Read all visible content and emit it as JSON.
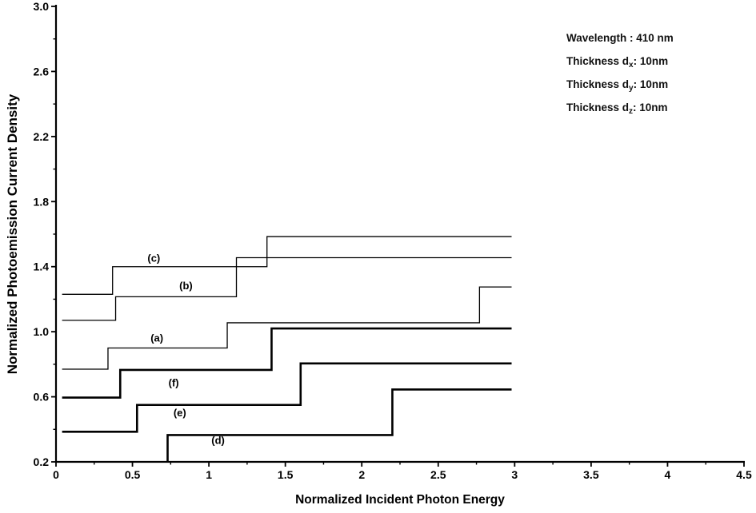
{
  "figure": {
    "background": "#ffffff",
    "axis_color": "#000000",
    "curve_color": "#000000"
  },
  "chart_data": {
    "type": "line",
    "subtype": "step",
    "title": "",
    "xlabel": "Normalized Incident Photon Energy",
    "ylabel": "Normalized Photoemission Current Density",
    "xlim": [
      0,
      4.5
    ],
    "ylim": [
      0.2,
      3.0
    ],
    "xtick_values": [
      0,
      0.5,
      1,
      1.5,
      2,
      2.5,
      3,
      3.5,
      4,
      4.5
    ],
    "xtick_labels": [
      "0",
      "0.5",
      "1",
      "1.5",
      "2",
      "2.5",
      "3",
      "3.5",
      "4",
      "4.5"
    ],
    "ytick_values": [
      0.2,
      0.6,
      1.0,
      1.4,
      1.8,
      2.2,
      2.6,
      3.0
    ],
    "ytick_labels": [
      "0.2",
      "0.6",
      "1.0",
      "1.4",
      "1.8",
      "2.2",
      "2.6",
      "3.0"
    ],
    "grid": false,
    "legend_position": "none",
    "annotation": {
      "lines": [
        {
          "pre": "Wavelength : ",
          "sub": "",
          "post": "410 nm"
        },
        {
          "pre": "Thickness d",
          "sub": "x",
          "post": ": 10nm"
        },
        {
          "pre": "Thickness d",
          "sub": "y",
          "post": ": 10nm"
        },
        {
          "pre": "Thickness d",
          "sub": "z",
          "post": ": 10nm"
        }
      ]
    },
    "series": [
      {
        "name": "(a)",
        "line_width": 1.3,
        "label_x": 0.66,
        "label_y": 0.96,
        "points": [
          [
            0.04,
            0.77
          ],
          [
            0.34,
            0.77
          ],
          [
            0.34,
            0.9
          ],
          [
            1.12,
            0.9
          ],
          [
            1.12,
            1.055
          ],
          [
            2.77,
            1.055
          ],
          [
            2.77,
            1.275
          ],
          [
            2.98,
            1.275
          ]
        ]
      },
      {
        "name": "(b)",
        "line_width": 1.3,
        "label_x": 0.85,
        "label_y": 1.28,
        "points": [
          [
            0.04,
            1.07
          ],
          [
            0.39,
            1.07
          ],
          [
            0.39,
            1.215
          ],
          [
            1.18,
            1.215
          ],
          [
            1.18,
            1.455
          ],
          [
            2.98,
            1.455
          ]
        ]
      },
      {
        "name": "(c)",
        "line_width": 1.3,
        "label_x": 0.64,
        "label_y": 1.45,
        "points": [
          [
            0.04,
            1.23
          ],
          [
            0.37,
            1.23
          ],
          [
            0.37,
            1.4
          ],
          [
            1.38,
            1.4
          ],
          [
            1.38,
            1.585
          ],
          [
            2.98,
            1.585
          ]
        ]
      },
      {
        "name": "(d)",
        "line_width": 2.6,
        "label_x": 1.06,
        "label_y": 0.33,
        "points": [
          [
            0.73,
            0.205
          ],
          [
            0.73,
            0.365
          ],
          [
            2.2,
            0.365
          ],
          [
            2.2,
            0.645
          ],
          [
            2.98,
            0.645
          ]
        ]
      },
      {
        "name": "(e)",
        "line_width": 2.6,
        "label_x": 0.81,
        "label_y": 0.5,
        "points": [
          [
            0.04,
            0.385
          ],
          [
            0.53,
            0.385
          ],
          [
            0.53,
            0.55
          ],
          [
            1.6,
            0.55
          ],
          [
            1.6,
            0.805
          ],
          [
            2.98,
            0.805
          ]
        ]
      },
      {
        "name": "(f)",
        "line_width": 2.6,
        "label_x": 0.77,
        "label_y": 0.685,
        "points": [
          [
            0.04,
            0.595
          ],
          [
            0.42,
            0.595
          ],
          [
            0.42,
            0.765
          ],
          [
            1.41,
            0.765
          ],
          [
            1.41,
            1.02
          ],
          [
            2.98,
            1.02
          ]
        ]
      }
    ]
  }
}
